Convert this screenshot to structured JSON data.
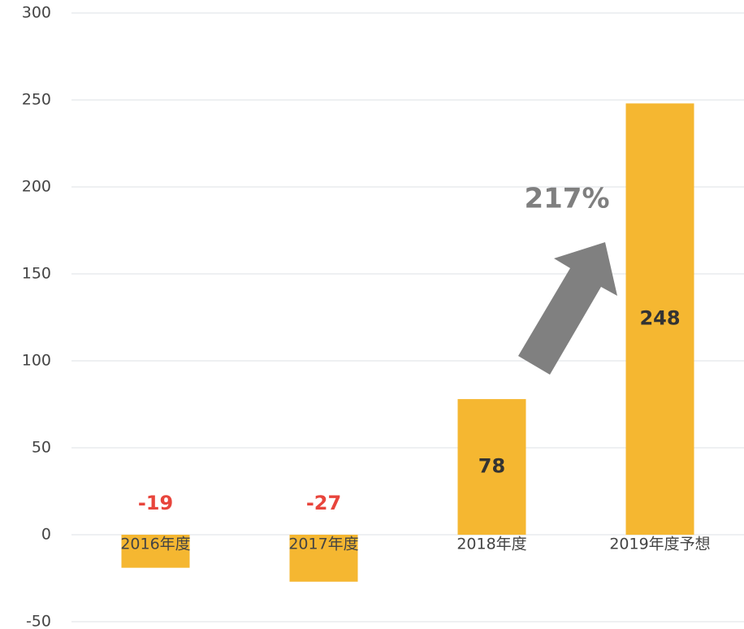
{
  "chart_data": {
    "type": "bar",
    "categories": [
      "2016年度",
      "2017年度",
      "2018年度",
      "2019年度予想"
    ],
    "values": [
      -19,
      -27,
      78,
      248
    ],
    "color": "#f5b731",
    "label_color_positive": "#333333",
    "label_color_negative": "#e8453c",
    "ylim": [
      -50,
      300
    ],
    "yticks": [
      -50,
      0,
      50,
      100,
      150,
      200,
      250,
      300
    ],
    "grid": true,
    "annotation": "217%"
  }
}
